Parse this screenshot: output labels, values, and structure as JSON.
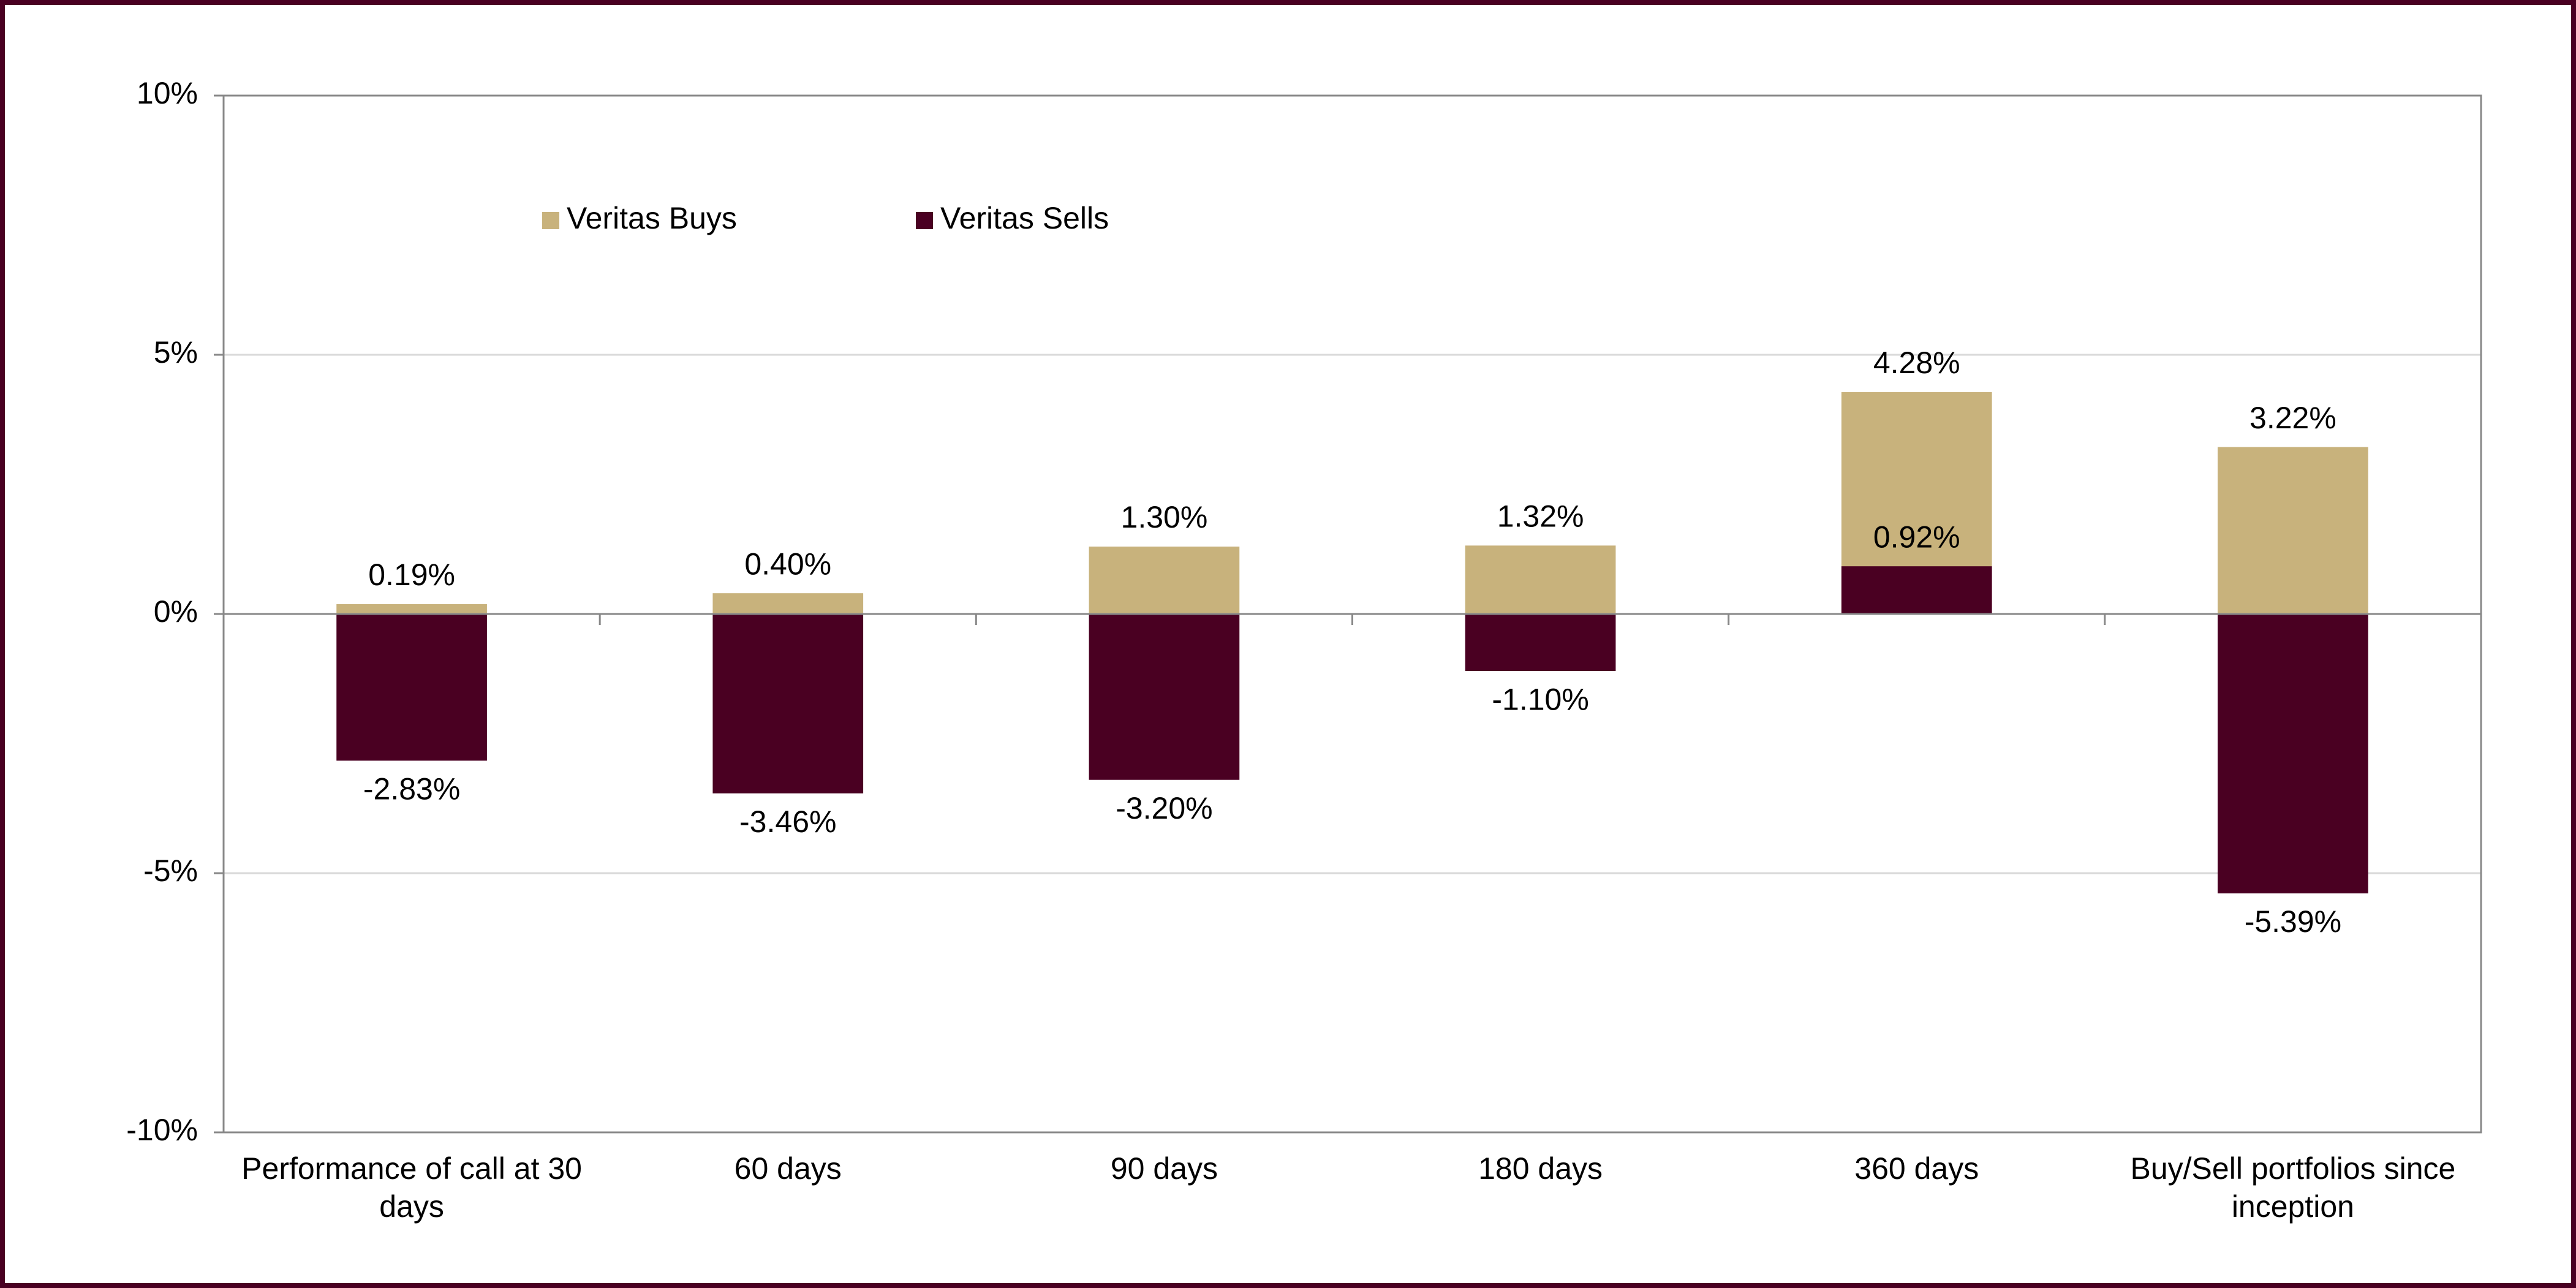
{
  "chart_data": {
    "type": "bar",
    "bar_mode": "overlap",
    "categories": [
      "Performance of call at 30 days",
      "60 days",
      "90 days",
      "180 days",
      "360 days",
      "Buy/Sell portfolios since inception"
    ],
    "series": [
      {
        "name": "Veritas Buys",
        "color": "#c8b27c",
        "values": [
          0.19,
          0.4,
          1.3,
          1.32,
          4.28,
          3.22
        ],
        "value_labels": [
          "0.19%",
          "0.40%",
          "1.30%",
          "1.32%",
          "4.28%",
          "3.22%"
        ]
      },
      {
        "name": "Veritas Sells",
        "color": "#4a0022",
        "values": [
          -2.83,
          -3.46,
          -3.2,
          -1.1,
          0.92,
          -5.39
        ],
        "value_labels": [
          "-2.83%",
          "-3.46%",
          "-3.20%",
          "-1.10%",
          "0.92%",
          "-5.39%"
        ]
      }
    ],
    "ylim": [
      -10,
      10
    ],
    "yticks": [
      {
        "value": -10,
        "label": "-10%"
      },
      {
        "value": -5,
        "label": "-5%"
      },
      {
        "value": 0,
        "label": "0%"
      },
      {
        "value": 5,
        "label": "5%"
      },
      {
        "value": 10,
        "label": "10%"
      }
    ],
    "grid": true,
    "legend": "upper left"
  }
}
